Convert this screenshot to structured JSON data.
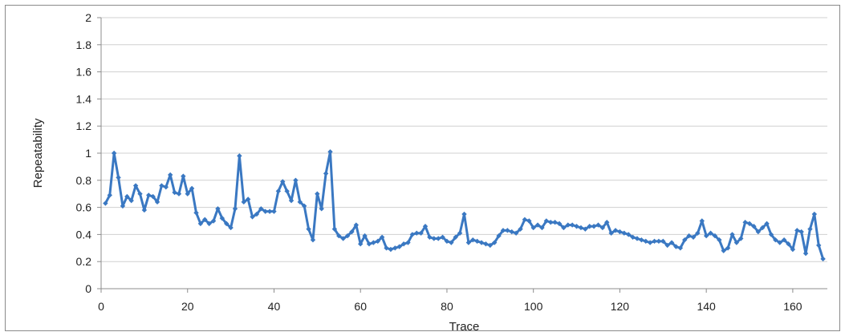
{
  "chart_data": {
    "type": "line",
    "title": "",
    "xlabel": "Trace",
    "ylabel": "Repeatability",
    "xlim": [
      0,
      168
    ],
    "ylim": [
      0,
      2
    ],
    "xticks": [
      0,
      20,
      40,
      60,
      80,
      100,
      120,
      140,
      160
    ],
    "yticks": [
      0,
      0.2,
      0.4,
      0.6,
      0.8,
      1,
      1.2,
      1.4,
      1.6,
      1.8,
      2
    ],
    "ytick_labels": [
      "0",
      "0.2",
      "0.4",
      "0.6",
      "0.8",
      "1",
      "1.2",
      "1.4",
      "1.6",
      "1.8",
      "2"
    ],
    "grid": "horizontal",
    "legend": "none",
    "series": [
      {
        "color": "#3a78c2",
        "marker": "diamond",
        "x": [
          1,
          2,
          3,
          4,
          5,
          6,
          7,
          8,
          9,
          10,
          11,
          12,
          13,
          14,
          15,
          16,
          17,
          18,
          19,
          20,
          21,
          22,
          23,
          24,
          25,
          26,
          27,
          28,
          29,
          30,
          31,
          32,
          33,
          34,
          35,
          36,
          37,
          38,
          39,
          40,
          41,
          42,
          43,
          44,
          45,
          46,
          47,
          48,
          49,
          50,
          51,
          52,
          53,
          54,
          55,
          56,
          57,
          58,
          59,
          60,
          61,
          62,
          63,
          64,
          65,
          66,
          67,
          68,
          69,
          70,
          71,
          72,
          73,
          74,
          75,
          76,
          77,
          78,
          79,
          80,
          81,
          82,
          83,
          84,
          85,
          86,
          87,
          88,
          89,
          90,
          91,
          92,
          93,
          94,
          95,
          96,
          97,
          98,
          99,
          100,
          101,
          102,
          103,
          104,
          105,
          106,
          107,
          108,
          109,
          110,
          111,
          112,
          113,
          114,
          115,
          116,
          117,
          118,
          119,
          120,
          121,
          122,
          123,
          124,
          125,
          126,
          127,
          128,
          129,
          130,
          131,
          132,
          133,
          134,
          135,
          136,
          137,
          138,
          139,
          140,
          141,
          142,
          143,
          144,
          145,
          146,
          147,
          148,
          149,
          150,
          151,
          152,
          153,
          154,
          155,
          156,
          157,
          158,
          159,
          160,
          161,
          162,
          163,
          164,
          165,
          166,
          167
        ],
        "values": [
          0.63,
          0.69,
          1.0,
          0.82,
          0.61,
          0.68,
          0.65,
          0.76,
          0.7,
          0.58,
          0.69,
          0.68,
          0.64,
          0.76,
          0.75,
          0.84,
          0.71,
          0.7,
          0.83,
          0.7,
          0.74,
          0.56,
          0.48,
          0.51,
          0.48,
          0.5,
          0.59,
          0.52,
          0.48,
          0.45,
          0.59,
          0.98,
          0.64,
          0.66,
          0.53,
          0.55,
          0.59,
          0.57,
          0.57,
          0.57,
          0.72,
          0.79,
          0.72,
          0.65,
          0.8,
          0.64,
          0.61,
          0.44,
          0.36,
          0.7,
          0.59,
          0.85,
          1.01,
          0.44,
          0.39,
          0.37,
          0.39,
          0.42,
          0.47,
          0.33,
          0.39,
          0.33,
          0.34,
          0.35,
          0.38,
          0.3,
          0.29,
          0.3,
          0.31,
          0.33,
          0.34,
          0.4,
          0.41,
          0.41,
          0.46,
          0.38,
          0.37,
          0.37,
          0.38,
          0.35,
          0.34,
          0.38,
          0.41,
          0.55,
          0.34,
          0.36,
          0.35,
          0.34,
          0.33,
          0.32,
          0.34,
          0.39,
          0.43,
          0.43,
          0.42,
          0.41,
          0.44,
          0.51,
          0.5,
          0.45,
          0.47,
          0.45,
          0.5,
          0.49,
          0.49,
          0.48,
          0.45,
          0.47,
          0.47,
          0.46,
          0.45,
          0.44,
          0.46,
          0.46,
          0.47,
          0.45,
          0.49,
          0.41,
          0.43,
          0.42,
          0.41,
          0.4,
          0.38,
          0.37,
          0.36,
          0.35,
          0.34,
          0.35,
          0.35,
          0.35,
          0.32,
          0.34,
          0.31,
          0.3,
          0.36,
          0.39,
          0.38,
          0.41,
          0.5,
          0.39,
          0.41,
          0.39,
          0.36,
          0.28,
          0.3,
          0.4,
          0.34,
          0.37,
          0.49,
          0.48,
          0.46,
          0.42,
          0.45,
          0.48,
          0.4,
          0.36,
          0.34,
          0.36,
          0.33,
          0.29,
          0.43,
          0.42,
          0.26,
          0.44,
          0.55,
          0.32,
          0.22
        ]
      }
    ]
  }
}
